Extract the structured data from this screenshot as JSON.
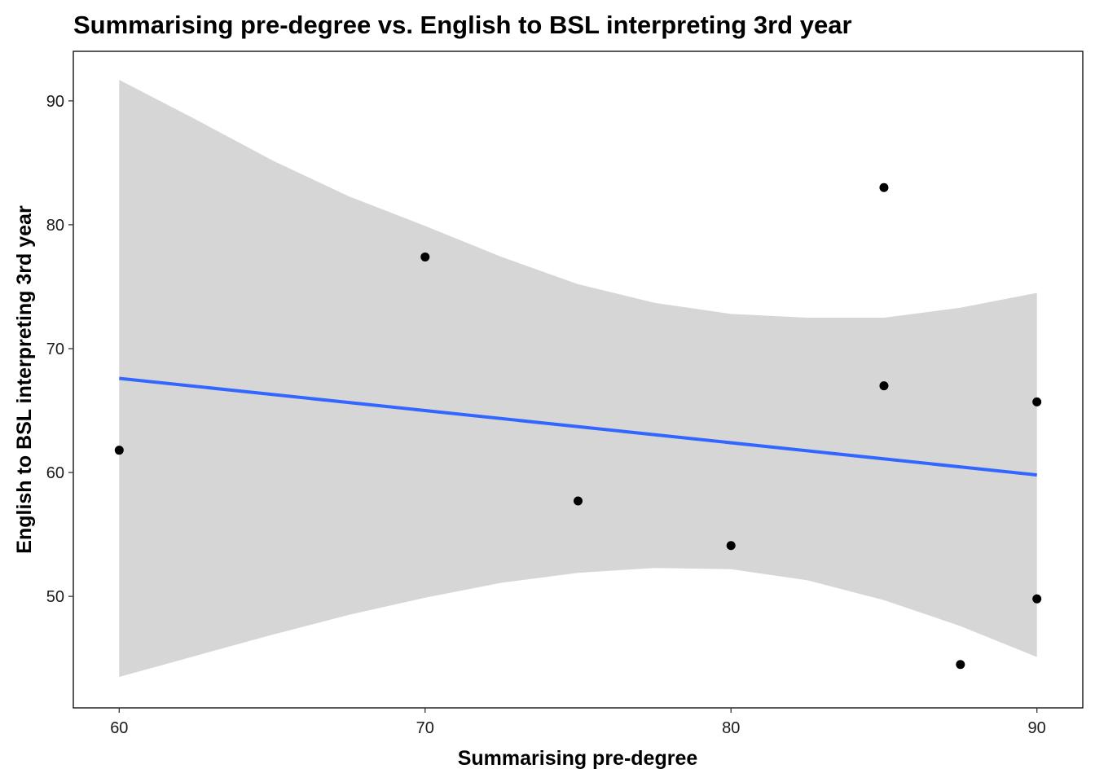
{
  "chart_data": {
    "type": "scatter",
    "title": "Summarising pre-degree vs. English to BSL interpreting 3rd year",
    "xlabel": "Summarising pre-degree",
    "ylabel": "English to BSL interpreting 3rd year",
    "xlim": [
      58.5,
      91.5
    ],
    "ylim": [
      41.0,
      94.0
    ],
    "x_ticks": [
      60,
      70,
      80,
      90
    ],
    "y_ticks": [
      50,
      60,
      70,
      80,
      90
    ],
    "grid": false,
    "points": [
      {
        "x": 60,
        "y": 61.8
      },
      {
        "x": 70,
        "y": 77.4
      },
      {
        "x": 75,
        "y": 57.7
      },
      {
        "x": 80,
        "y": 54.1
      },
      {
        "x": 85,
        "y": 83.0
      },
      {
        "x": 85,
        "y": 67.0
      },
      {
        "x": 87.5,
        "y": 44.5
      },
      {
        "x": 90,
        "y": 65.7
      },
      {
        "x": 90,
        "y": 49.8
      }
    ],
    "trend_line": {
      "method": "linear regression",
      "x": [
        60,
        90
      ],
      "y": [
        67.6,
        59.8
      ]
    },
    "confidence_band": {
      "x": [
        60,
        62.5,
        65,
        67.5,
        70,
        72.5,
        75,
        77.5,
        80,
        82.5,
        85,
        87.5,
        90
      ],
      "lower": [
        43.5,
        45.2,
        46.9,
        48.5,
        49.9,
        51.1,
        51.9,
        52.3,
        52.2,
        51.3,
        49.7,
        47.6,
        45.1
      ],
      "upper": [
        91.7,
        88.5,
        85.2,
        82.3,
        79.9,
        77.4,
        75.2,
        73.7,
        72.8,
        72.5,
        72.5,
        73.3,
        74.5
      ]
    },
    "colors": {
      "points": "#000000",
      "trend_line": "#3366FF",
      "band": "#D6D6D6",
      "panel_border": "#000000"
    }
  }
}
